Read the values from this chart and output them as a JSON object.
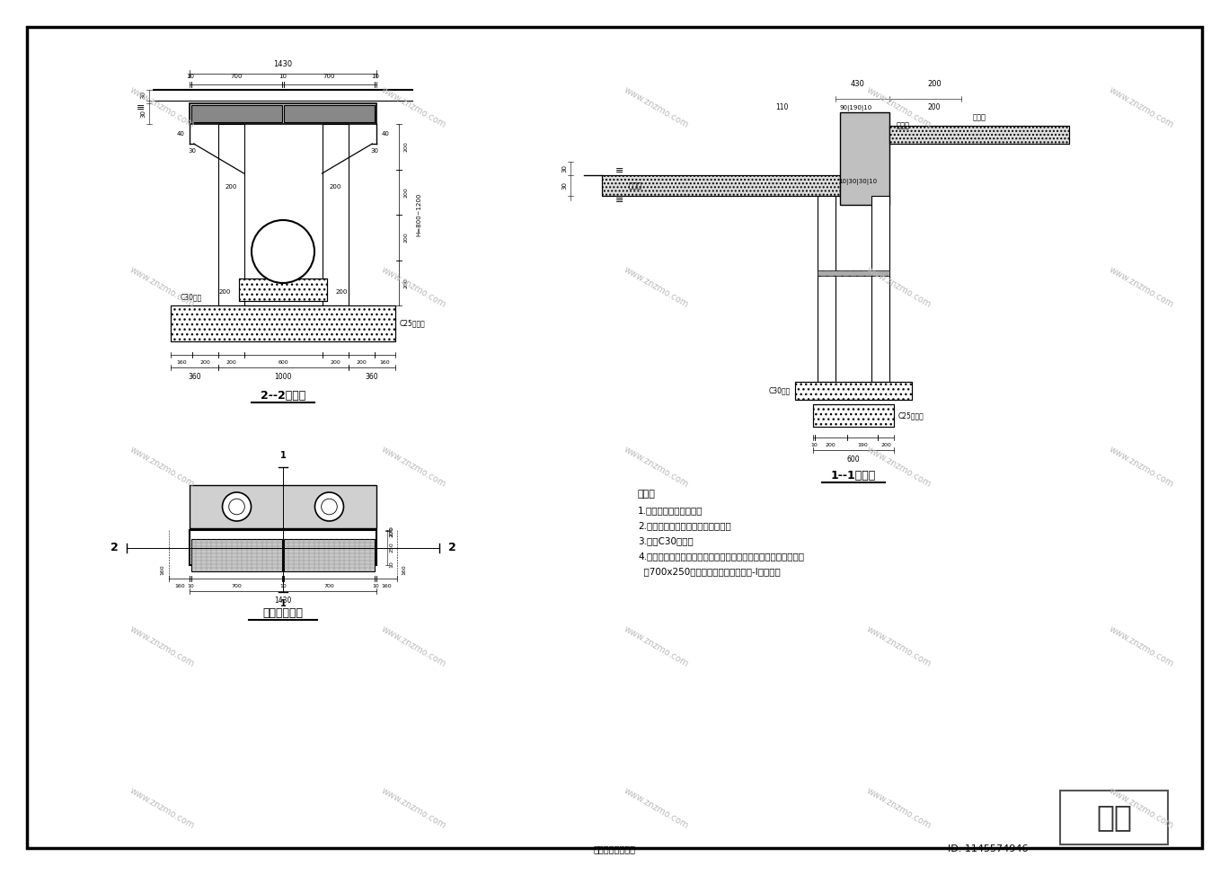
{
  "bg_color": "#ffffff",
  "border_color": "#000000",
  "line_color": "#000000",
  "title_bottom": "双箅雨水口大样图",
  "id_text": "ID: 1145574946",
  "znzmo_text": "知末",
  "section22_title": "2--2剖面图",
  "section11_title": "1--1剖面图",
  "plan_title": "雨水口平面图",
  "notes_title": "说明：",
  "notes": [
    "1.本图尺寸均以毫米计。",
    "2.本图适用于车行道上沿两侧安置。",
    "3.井墙C30砌块。",
    "4.雨水箅为新型复合材料成品（周边带垫圈），车行道上雨水箅选",
    "  用700x250型重型，荷载标准为公路-I级荷载。"
  ]
}
